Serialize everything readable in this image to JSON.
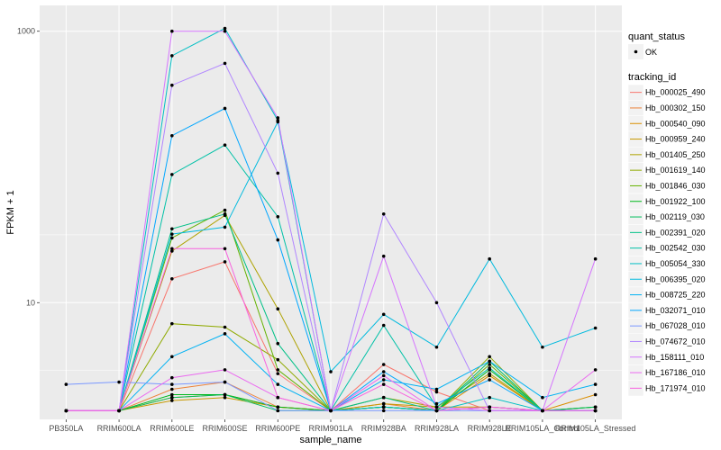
{
  "chart_data": {
    "type": "line",
    "xlabel": "sample_name",
    "ylabel": "FPKM + 1",
    "y_scale": "log10",
    "ylim": [
      1.38,
      1550
    ],
    "yticks": [
      {
        "value": 10,
        "label": "10"
      },
      {
        "value": 1000,
        "label": "1000"
      }
    ],
    "background": "#ebebeb",
    "grid": true,
    "grid_color": "#ffffff",
    "legend_position": "right",
    "categories": [
      "PB350LA",
      "RRIM600LA",
      "RRIM600LE",
      "RRIM600SE",
      "RRIM600PE",
      "RRIM901LA",
      "RRIM928BA",
      "RRIM928LA",
      "RRIM928LE",
      "RRIM105LA_Control",
      "RRIM105LA_Stressed"
    ],
    "quant_legend": {
      "title": "quant_status",
      "label": "OK"
    },
    "series_legend_title": "tracking_id",
    "series": [
      {
        "name": "Hb_000025_490",
        "color": "#F8766D",
        "values": [
          1.6,
          1.6,
          15,
          20,
          3,
          1.6,
          3.5,
          2.2,
          1.6,
          1.6,
          1.6
        ]
      },
      {
        "name": "Hb_000302_150",
        "color": "#EC8239",
        "values": [
          1.6,
          1.6,
          2.3,
          2.6,
          1.7,
          1.6,
          1.8,
          1.6,
          1.7,
          1.6,
          1.6
        ]
      },
      {
        "name": "Hb_000540_090",
        "color": "#DB8E00",
        "values": [
          1.6,
          1.6,
          2.0,
          2.1,
          1.7,
          1.6,
          1.7,
          1.6,
          2.9,
          1.6,
          2.1
        ]
      },
      {
        "name": "Hb_000959_240",
        "color": "#C79800",
        "values": [
          1.6,
          1.6,
          1.9,
          2.0,
          1.7,
          1.6,
          1.8,
          1.7,
          1.7,
          1.6,
          1.6
        ]
      },
      {
        "name": "Hb_001405_250",
        "color": "#AEA200",
        "values": [
          1.6,
          1.6,
          24,
          44,
          9,
          1.6,
          2.0,
          1.7,
          3.0,
          1.6,
          1.7
        ]
      },
      {
        "name": "Hb_001619_140",
        "color": "#8FAA00",
        "values": [
          1.6,
          1.6,
          7,
          6.6,
          3.8,
          1.6,
          1.7,
          1.6,
          4,
          1.6,
          1.6
        ]
      },
      {
        "name": "Hb_001846_030",
        "color": "#64B200",
        "values": [
          1.6,
          1.6,
          30,
          48,
          3.2,
          1.6,
          1.7,
          1.6,
          3.5,
          1.6,
          1.6
        ]
      },
      {
        "name": "Hb_001922_100",
        "color": "#00B81B",
        "values": [
          1.6,
          1.6,
          2.1,
          2.1,
          1.7,
          1.6,
          1.7,
          1.6,
          3.2,
          1.6,
          1.7
        ]
      },
      {
        "name": "Hb_002119_030",
        "color": "#00BD5C",
        "values": [
          1.6,
          1.6,
          2.0,
          2.1,
          1.6,
          1.6,
          1.7,
          1.6,
          3.7,
          1.6,
          1.7
        ]
      },
      {
        "name": "Hb_002391_020",
        "color": "#00C086",
        "values": [
          1.6,
          1.6,
          35,
          45,
          5,
          1.6,
          2.0,
          1.6,
          1.7,
          1.6,
          1.6
        ]
      },
      {
        "name": "Hb_002542_030",
        "color": "#00C1A7",
        "values": [
          1.6,
          1.6,
          88,
          145,
          43,
          1.6,
          6.8,
          1.7,
          3.3,
          1.6,
          1.6
        ]
      },
      {
        "name": "Hb_005054_330",
        "color": "#00BFC4",
        "values": [
          1.6,
          1.6,
          660,
          1050,
          220,
          1.6,
          1.7,
          1.6,
          2.0,
          1.6,
          1.6
        ]
      },
      {
        "name": "Hb_006395_020",
        "color": "#00BADE",
        "values": [
          1.6,
          1.6,
          32,
          36,
          215,
          3.1,
          8.2,
          4.7,
          21,
          4.7,
          6.5
        ]
      },
      {
        "name": "Hb_008725_220",
        "color": "#00B2F3",
        "values": [
          1.6,
          1.6,
          4.0,
          5.9,
          2.5,
          1.6,
          2.7,
          2.3,
          3.7,
          2.0,
          2.5
        ]
      },
      {
        "name": "Hb_032071_010",
        "color": "#00A6FF",
        "values": [
          1.6,
          1.6,
          170,
          270,
          29,
          1.6,
          3.1,
          1.8,
          2.7,
          1.6,
          1.6
        ]
      },
      {
        "name": "Hb_067028_010",
        "color": "#7997FF",
        "values": [
          2.5,
          2.6,
          2.5,
          2.6,
          1.6,
          1.6,
          1.6,
          1.6,
          1.6,
          1.6,
          1.6
        ]
      },
      {
        "name": "Hb_074672_010",
        "color": "#B186FF",
        "values": [
          1.6,
          1.6,
          400,
          580,
          90,
          1.6,
          45,
          10,
          1.6,
          1.6,
          1.6
        ]
      },
      {
        "name": "Hb_158111_010",
        "color": "#D575FE",
        "values": [
          1.6,
          1.6,
          1000,
          1000,
          230,
          1.6,
          22,
          1.7,
          1.6,
          1.6,
          21
        ]
      },
      {
        "name": "Hb_167186_010",
        "color": "#EB69F0",
        "values": [
          1.6,
          1.6,
          2.8,
          3.2,
          2.0,
          1.6,
          2.9,
          1.6,
          1.7,
          1.6,
          3.2
        ]
      },
      {
        "name": "Hb_171974_010",
        "color": "#F863DF",
        "values": [
          1.6,
          1.6,
          25,
          25,
          2.0,
          1.6,
          2.5,
          1.6,
          1.7,
          1.6,
          1.6
        ]
      }
    ]
  }
}
